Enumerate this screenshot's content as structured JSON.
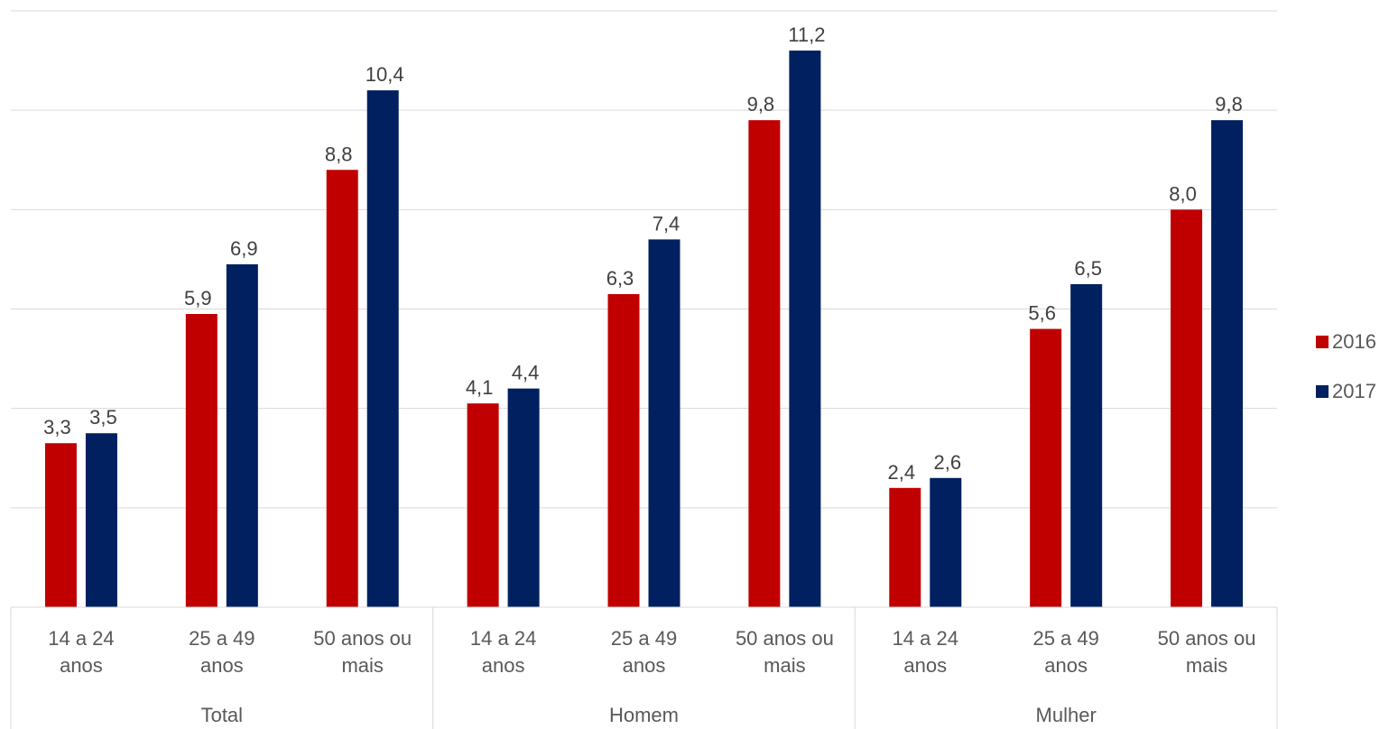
{
  "chart_data": {
    "type": "bar",
    "title": "",
    "xlabel": "",
    "ylabel": "",
    "ylim": [
      0,
      12
    ],
    "grid": true,
    "legend_position": "right",
    "groups": [
      {
        "label": "Total",
        "categories": [
          [
            "14 a 24",
            "anos"
          ],
          [
            "25 a 49",
            "anos"
          ],
          [
            "50 anos ou",
            "mais"
          ]
        ]
      },
      {
        "label": "Homem",
        "categories": [
          [
            "14 a 24",
            "anos"
          ],
          [
            "25 a 49",
            "anos"
          ],
          [
            "50 anos ou",
            "mais"
          ]
        ]
      },
      {
        "label": "Mulher",
        "categories": [
          [
            "14 a 24",
            "anos"
          ],
          [
            "25 a 49",
            "anos"
          ],
          [
            "50 anos ou",
            "mais"
          ]
        ]
      }
    ],
    "series": [
      {
        "name": "2016",
        "color": "#c00000",
        "values": [
          3.3,
          5.9,
          8.8,
          4.1,
          6.3,
          9.8,
          2.4,
          5.6,
          8.0
        ]
      },
      {
        "name": "2017",
        "color": "#002060",
        "values": [
          3.5,
          6.9,
          10.4,
          4.4,
          7.4,
          11.2,
          2.6,
          6.5,
          9.8
        ]
      }
    ]
  }
}
